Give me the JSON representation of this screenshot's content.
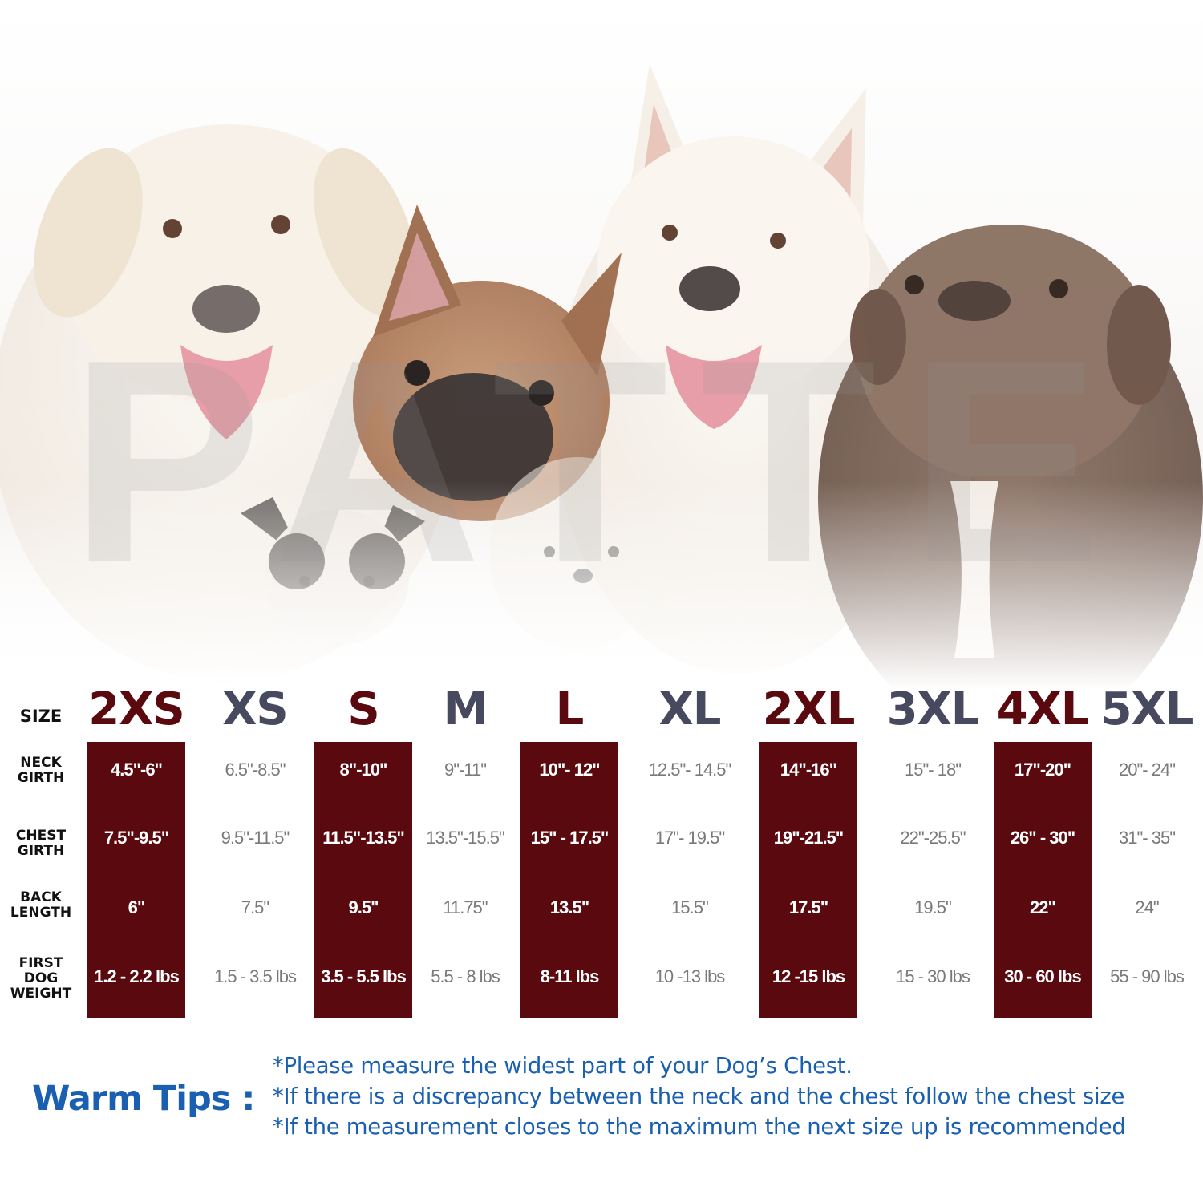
{
  "watermark": "PATTE",
  "size_chart": {
    "row_labels": {
      "size": "SIZE",
      "neck": [
        "NECK",
        "GIRTH"
      ],
      "chest": [
        "CHEST",
        "GIRTH"
      ],
      "back": [
        "BACK",
        "LENGTH"
      ],
      "weight": [
        "FIRST",
        "DOG",
        "WEIGHT"
      ]
    },
    "colors": {
      "band": "#5a0a0f",
      "heading_dark": "#5a0a0f",
      "heading_gray": "#474a5e",
      "band_text": "#ffffff",
      "plain_text": "#7a7a7a"
    },
    "sizes": [
      {
        "size": "2XS",
        "highlighted": true,
        "neck": "4.5\"-6\"",
        "chest": "7.5\"-9.5\"",
        "back": "6\"",
        "weight": "1.2 - 2.2 lbs"
      },
      {
        "size": "XS",
        "highlighted": false,
        "neck": "6.5\"-8.5\"",
        "chest": "9.5\"-11.5\"",
        "back": "7.5\"",
        "weight": "1.5 - 3.5 lbs"
      },
      {
        "size": "S",
        "highlighted": true,
        "neck": "8\"-10\"",
        "chest": "11.5\"-13.5\"",
        "back": "9.5\"",
        "weight": "3.5 - 5.5 lbs"
      },
      {
        "size": "M",
        "highlighted": false,
        "neck": "9\"-11\"",
        "chest": "13.5\"-15.5\"",
        "back": "11.75\"",
        "weight": "5.5 - 8 lbs"
      },
      {
        "size": "L",
        "highlighted": true,
        "neck": "10\"- 12\"",
        "chest": "15\" - 17.5\"",
        "back": "13.5\"",
        "weight": "8-11 lbs"
      },
      {
        "size": "XL",
        "highlighted": false,
        "neck": "12.5\"- 14.5\"",
        "chest": "17\"- 19.5\"",
        "back": "15.5\"",
        "weight": "10 -13 lbs"
      },
      {
        "size": "2XL",
        "highlighted": true,
        "neck": "14\"-16\"",
        "chest": "19\"-21.5\"",
        "back": "17.5\"",
        "weight": "12 -15 lbs"
      },
      {
        "size": "3XL",
        "highlighted": false,
        "neck": "15\"- 18\"",
        "chest": "22\"-25.5\"",
        "back": "19.5\"",
        "weight": "15 - 30 lbs"
      },
      {
        "size": "4XL",
        "highlighted": true,
        "neck": "17\"-20\"",
        "chest": "26\" - 30\"",
        "back": "22\"",
        "weight": "30 - 60 lbs"
      },
      {
        "size": "5XL",
        "highlighted": false,
        "neck": "20\"- 24\"",
        "chest": "31\"- 35\"",
        "back": "24\"",
        "weight": "55 - 90 lbs"
      }
    ]
  },
  "warm_tips": {
    "title": "Warm Tips :",
    "color": "#1a5fb0",
    "items": [
      "*Please measure the widest part of your Dog’s Chest.",
      "*If there is a discrepancy between the neck and the chest  follow the chest size",
      "*If the measurement closes to the maximum the next size up is recommended"
    ]
  }
}
